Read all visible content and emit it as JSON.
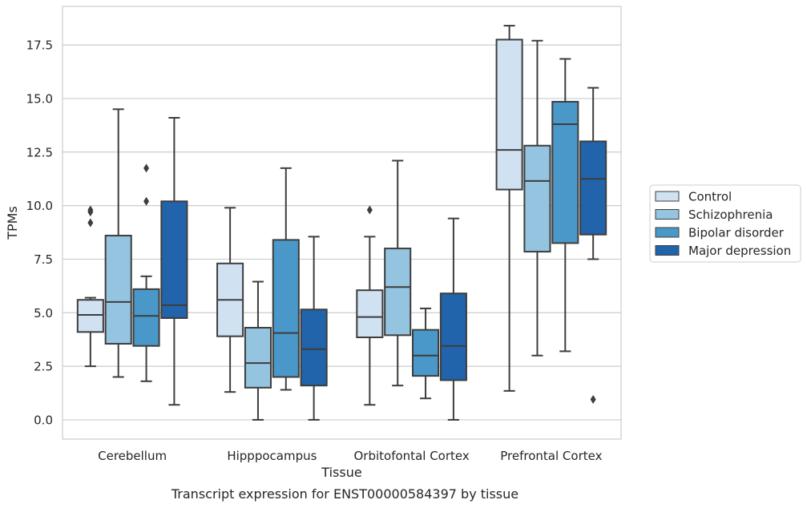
{
  "chart_data": {
    "type": "box",
    "caption": "Transcript expression for ENST00000584397 by tissue",
    "xlabel": "Tissue",
    "ylabel": "TPMs",
    "ylim": [
      -0.9,
      19.3
    ],
    "yticks": [
      0.0,
      2.5,
      5.0,
      7.5,
      10.0,
      12.5,
      15.0,
      17.5
    ],
    "ytick_labels": [
      "0.0",
      "2.5",
      "5.0",
      "7.5",
      "10.0",
      "12.5",
      "15.0",
      "17.5"
    ],
    "grid": true,
    "legend_position": "right",
    "categories": [
      "Cerebellum",
      "Hipppocampus",
      "Orbitofontal Cortex",
      "Prefrontal Cortex"
    ],
    "series": [
      {
        "name": "Control",
        "color": "#d0e1f2",
        "boxes": [
          {
            "min": 2.5,
            "q1": 4.1,
            "median": 4.9,
            "q3": 5.6,
            "max": 5.7,
            "outliers": [
              9.2,
              9.7,
              9.8
            ]
          },
          {
            "min": 1.3,
            "q1": 3.9,
            "median": 5.6,
            "q3": 7.3,
            "max": 9.9,
            "outliers": []
          },
          {
            "min": 0.7,
            "q1": 3.85,
            "median": 4.8,
            "q3": 6.05,
            "max": 8.55,
            "outliers": [
              9.8
            ]
          },
          {
            "min": 1.35,
            "q1": 10.75,
            "median": 12.6,
            "q3": 17.75,
            "max": 18.4,
            "outliers": []
          }
        ]
      },
      {
        "name": "Schizophrenia",
        "color": "#94c4df",
        "boxes": [
          {
            "min": 2.0,
            "q1": 3.55,
            "median": 5.5,
            "q3": 8.6,
            "max": 14.5,
            "outliers": []
          },
          {
            "min": 0.0,
            "q1": 1.5,
            "median": 2.65,
            "q3": 4.3,
            "max": 6.45,
            "outliers": []
          },
          {
            "min": 1.6,
            "q1": 3.95,
            "median": 6.2,
            "q3": 8.0,
            "max": 12.1,
            "outliers": []
          },
          {
            "min": 3.0,
            "q1": 7.85,
            "median": 11.15,
            "q3": 12.8,
            "max": 17.7,
            "outliers": []
          }
        ]
      },
      {
        "name": "Bipolar disorder",
        "color": "#4a98c9",
        "boxes": [
          {
            "min": 1.8,
            "q1": 3.45,
            "median": 4.85,
            "q3": 6.1,
            "max": 6.7,
            "outliers": [
              10.2,
              11.75
            ]
          },
          {
            "min": 1.4,
            "q1": 2.0,
            "median": 4.05,
            "q3": 8.4,
            "max": 11.75,
            "outliers": []
          },
          {
            "min": 1.0,
            "q1": 2.05,
            "median": 3.0,
            "q3": 4.2,
            "max": 5.2,
            "outliers": []
          },
          {
            "min": 3.2,
            "q1": 8.25,
            "median": 13.8,
            "q3": 14.85,
            "max": 16.85,
            "outliers": []
          }
        ]
      },
      {
        "name": "Major depression",
        "color": "#2164ab",
        "boxes": [
          {
            "min": 0.7,
            "q1": 4.75,
            "median": 5.35,
            "q3": 10.2,
            "max": 14.1,
            "outliers": []
          },
          {
            "min": 0.0,
            "q1": 1.6,
            "median": 3.3,
            "q3": 5.15,
            "max": 8.55,
            "outliers": []
          },
          {
            "min": 0.0,
            "q1": 1.85,
            "median": 3.45,
            "q3": 5.9,
            "max": 9.4,
            "outliers": []
          },
          {
            "min": 7.5,
            "q1": 8.65,
            "median": 11.25,
            "q3": 13.0,
            "max": 15.5,
            "outliers": [
              0.95
            ]
          }
        ]
      }
    ]
  }
}
